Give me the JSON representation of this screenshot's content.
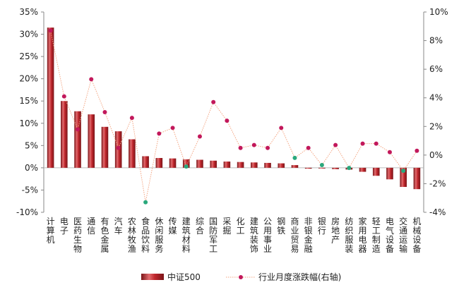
{
  "chart_data": {
    "type": "bar",
    "categories": [
      "计算机",
      "电子",
      "医药生物",
      "通信",
      "有色金属",
      "汽车",
      "农林牧渔",
      "食品饮料",
      "休闲服务",
      "传媒",
      "建筑材料",
      "综合",
      "国防军工",
      "采掘",
      "化工",
      "建筑装饰",
      "公用事业",
      "钢铁",
      "商业贸易",
      "非银金融",
      "银行",
      "房地产",
      "纺织服装",
      "家用电器",
      "轻工制造",
      "电气设备",
      "交通运输",
      "机械设备"
    ],
    "left_axis": {
      "ylim": [
        -10,
        35
      ],
      "ticks": [
        "-10%",
        "-5%",
        "0%",
        "5%",
        "10%",
        "15%",
        "20%",
        "25%",
        "30%",
        "35%"
      ]
    },
    "right_axis": {
      "ylim": [
        -4,
        10
      ],
      "ticks": [
        "-4%",
        "-2%",
        "0%",
        "2%",
        "4%",
        "6%",
        "8%",
        "10%"
      ]
    },
    "series": [
      {
        "name": "中证500",
        "type": "bar",
        "axis": "left",
        "unit": "%",
        "values": [
          31.5,
          15.0,
          12.7,
          12.0,
          9.2,
          8.2,
          6.4,
          2.6,
          2.2,
          2.1,
          1.9,
          1.8,
          1.6,
          1.4,
          1.3,
          1.2,
          1.1,
          1.0,
          0.6,
          -0.2,
          -0.1,
          -0.3,
          -0.4,
          -0.9,
          -1.8,
          -2.6,
          -4.3,
          -4.8
        ]
      },
      {
        "name": "行业月度涨跌幅(右轴)",
        "type": "line",
        "axis": "right",
        "unit": "%",
        "values": [
          8.7,
          4.1,
          1.8,
          5.3,
          3.0,
          0.5,
          2.6,
          -3.3,
          1.5,
          1.9,
          -0.8,
          1.3,
          3.7,
          2.4,
          0.5,
          0.7,
          0.5,
          1.9,
          -0.2,
          0.5,
          -0.7,
          0.7,
          -0.9,
          0.8,
          0.8,
          0.2,
          -1.1,
          0.3
        ]
      }
    ],
    "highlighted_points": [
      7,
      10,
      18,
      20,
      22,
      26
    ],
    "colors": {
      "bar": "#c0272d",
      "bar_dark": "#7a1418",
      "bar_light": "#e9a0a2",
      "line": "#f4a582",
      "marker": "#c2185b",
      "marker_highlight": "#2aa87c",
      "axis": "#888888"
    },
    "legend_position": "bottom",
    "grid": false
  }
}
